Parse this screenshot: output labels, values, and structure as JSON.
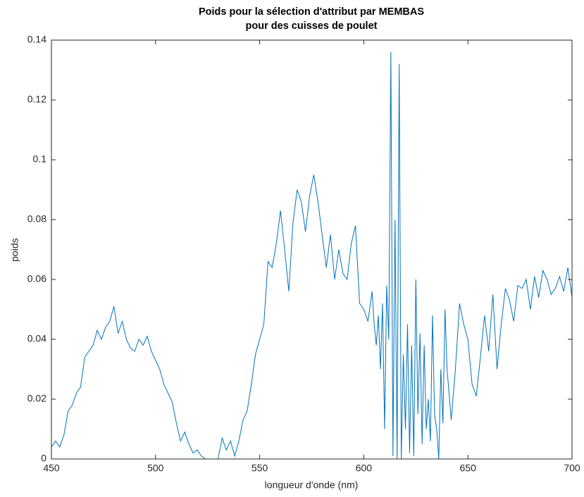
{
  "chart_data": {
    "type": "line",
    "title": [
      "Poids pour la sélection d'attribut par MEMBAS",
      "pour des cuisses de poulet"
    ],
    "xlabel": "longueur d'onde (nm)",
    "ylabel": "poids",
    "color": "#0072bd",
    "xlim": [
      450,
      700
    ],
    "ylim": [
      0,
      0.14
    ],
    "xticks": [
      450,
      500,
      550,
      600,
      650,
      700
    ],
    "yticks": [
      0,
      0.02,
      0.04,
      0.06,
      0.08,
      0.1,
      0.12,
      0.14
    ],
    "x": [
      450,
      452,
      454,
      456,
      458,
      460,
      462,
      464,
      466,
      468,
      470,
      472,
      474,
      476,
      478,
      480,
      482,
      484,
      486,
      488,
      490,
      492,
      494,
      496,
      498,
      500,
      502,
      504,
      506,
      508,
      510,
      512,
      514,
      516,
      518,
      520,
      522,
      524,
      526,
      528,
      530,
      532,
      534,
      536,
      538,
      540,
      542,
      544,
      546,
      548,
      550,
      552,
      554,
      556,
      558,
      560,
      562,
      564,
      566,
      568,
      570,
      572,
      574,
      576,
      578,
      580,
      582,
      584,
      586,
      588,
      590,
      592,
      594,
      596,
      598,
      600,
      602,
      604,
      605,
      606,
      607,
      608,
      609,
      610,
      611,
      612,
      613,
      614,
      615,
      616,
      617,
      618,
      619,
      620,
      621,
      622,
      623,
      624,
      625,
      626,
      627,
      628,
      629,
      630,
      631,
      632,
      633,
      634,
      635,
      636,
      637,
      638,
      639,
      640,
      642,
      644,
      646,
      648,
      650,
      652,
      654,
      656,
      658,
      660,
      662,
      664,
      666,
      668,
      670,
      672,
      674,
      676,
      678,
      680,
      682,
      684,
      686,
      688,
      690,
      692,
      694,
      696,
      698,
      700
    ],
    "values": [
      0.004,
      0.006,
      0.004,
      0.008,
      0.016,
      0.018,
      0.022,
      0.024,
      0.034,
      0.036,
      0.038,
      0.043,
      0.04,
      0.044,
      0.046,
      0.051,
      0.042,
      0.046,
      0.04,
      0.037,
      0.036,
      0.04,
      0.038,
      0.041,
      0.036,
      0.033,
      0.03,
      0.025,
      0.022,
      0.019,
      0.012,
      0.006,
      0.009,
      0.005,
      0.002,
      0.003,
      0.001,
      0,
      0,
      0,
      0,
      0.007,
      0.003,
      0.006,
      0.001,
      0.006,
      0.013,
      0.016,
      0.025,
      0.035,
      0.04,
      0.045,
      0.066,
      0.064,
      0.072,
      0.083,
      0.07,
      0.056,
      0.079,
      0.09,
      0.086,
      0.076,
      0.088,
      0.095,
      0.086,
      0.075,
      0.064,
      0.075,
      0.06,
      0.07,
      0.062,
      0.06,
      0.072,
      0.078,
      0.052,
      0.05,
      0.046,
      0.056,
      0.045,
      0.038,
      0.048,
      0.03,
      0.052,
      0.01,
      0.058,
      0.04,
      0.136,
      0.001,
      0.08,
      0,
      0.132,
      0,
      0.035,
      0.01,
      0.045,
      0.002,
      0.038,
      0.001,
      0.06,
      0.015,
      0.042,
      0.005,
      0.038,
      0.01,
      0.02,
      0.006,
      0.048,
      0.015,
      0.01,
      0,
      0.03,
      0.012,
      0.05,
      0.03,
      0.013,
      0.03,
      0.052,
      0.045,
      0.04,
      0.025,
      0.021,
      0.034,
      0.048,
      0.036,
      0.055,
      0.03,
      0.045,
      0.057,
      0.053,
      0.046,
      0.058,
      0.057,
      0.06,
      0.05,
      0.061,
      0.054,
      0.063,
      0.06,
      0.055,
      0.057,
      0.061,
      0.056,
      0.064,
      0.054
    ]
  }
}
